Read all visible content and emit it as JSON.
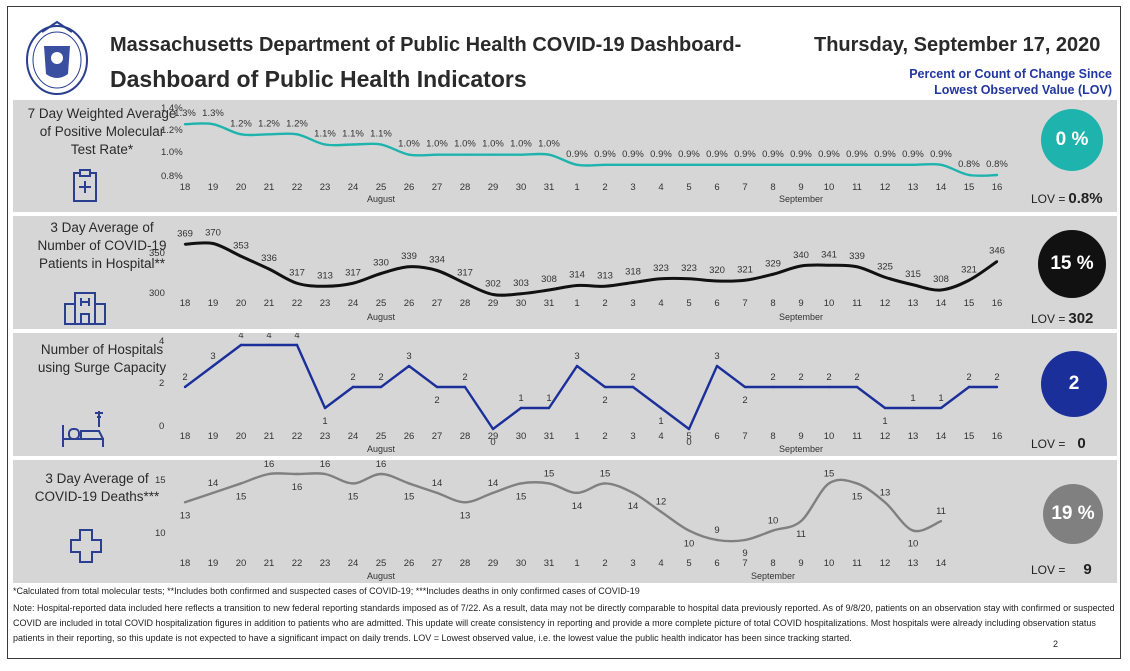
{
  "header": {
    "title": "Massachusetts Department of Public Health COVID-19 Dashboard-",
    "subtitle": "Dashboard of Public Health Indicators",
    "date": "Thursday, September 17, 2020",
    "note_line1": "Percent or Count of Change Since",
    "note_line2": "Lowest Observed Value (LOV)"
  },
  "colors": {
    "teal": "#1fb3ad",
    "black": "#111111",
    "blue": "#1b2f9b",
    "gray": "#808080",
    "panel": "#d6d6d6",
    "title": "#2237a0"
  },
  "panels": [
    {
      "label": "7 Day Weighted Average of Positive Molecular Test Rate*",
      "icon": "clipboard-icon",
      "change": "0 %",
      "lov_label": "LOV =",
      "lov_value": "0.8%"
    },
    {
      "label": "3 Day Average of Number of COVID-19 Patients in Hospital**",
      "icon": "hospital-icon",
      "change": "15 %",
      "lov_label": "LOV =",
      "lov_value": "302"
    },
    {
      "label": "Number of Hospitals using Surge Capacity",
      "icon": "hospital-bed-icon",
      "change": "2",
      "lov_label": "LOV =",
      "lov_value": "0"
    },
    {
      "label": "3 Day Average of COVID-19 Deaths***",
      "icon": "cross-icon",
      "change": "19 %",
      "lov_label": "LOV =",
      "lov_value": "9"
    }
  ],
  "chart_data": [
    {
      "type": "line",
      "x": [
        "18",
        "19",
        "20",
        "21",
        "22",
        "23",
        "24",
        "25",
        "26",
        "27",
        "28",
        "29",
        "30",
        "31",
        "1",
        "2",
        "3",
        "4",
        "5",
        "6",
        "7",
        "8",
        "9",
        "10",
        "11",
        "12",
        "13",
        "14",
        "15",
        "16"
      ],
      "month_labels": [
        "August",
        "September"
      ],
      "y_ticks": [
        "1.4%",
        "1.2%",
        "1.0%",
        "0.8%"
      ],
      "ylim": [
        0.8,
        1.4
      ],
      "series": [
        {
          "values": [
            1.3,
            1.3,
            1.2,
            1.2,
            1.2,
            1.1,
            1.1,
            1.1,
            1.0,
            1.0,
            1.0,
            1.0,
            1.0,
            1.0,
            0.9,
            0.9,
            0.9,
            0.9,
            0.9,
            0.9,
            0.9,
            0.9,
            0.9,
            0.9,
            0.9,
            0.9,
            0.9,
            0.9,
            0.8,
            0.8
          ],
          "labels": [
            "1.3%",
            "1.3%",
            "1.2%",
            "1.2%",
            "1.2%",
            "1.1%",
            "1.1%",
            "1.1%",
            "1.0%",
            "1.0%",
            "1.0%",
            "1.0%",
            "1.0%",
            "1.0%",
            "0.9%",
            "0.9%",
            "0.9%",
            "0.9%",
            "0.9%",
            "0.9%",
            "0.9%",
            "0.9%",
            "0.9%",
            "0.9%",
            "0.9%",
            "0.9%",
            "0.9%",
            "0.9%",
            "0.8%",
            "0.8%"
          ]
        }
      ],
      "color": "#1fb3ad"
    },
    {
      "type": "line",
      "x": [
        "18",
        "19",
        "20",
        "21",
        "22",
        "23",
        "24",
        "25",
        "26",
        "27",
        "28",
        "29",
        "30",
        "31",
        "1",
        "2",
        "3",
        "4",
        "5",
        "6",
        "7",
        "8",
        "9",
        "10",
        "11",
        "12",
        "13",
        "14",
        "15",
        "16"
      ],
      "month_labels": [
        "August",
        "September"
      ],
      "y_ticks": [
        "350",
        "300"
      ],
      "ylim": [
        300,
        372
      ],
      "series": [
        {
          "values": [
            369,
            370,
            353,
            336,
            317,
            313,
            317,
            330,
            339,
            334,
            317,
            302,
            303,
            308,
            314,
            313,
            318,
            323,
            323,
            320,
            321,
            329,
            340,
            341,
            339,
            325,
            315,
            308,
            321,
            346
          ],
          "labels": [
            "369",
            "370",
            "353",
            "336",
            "317",
            "313",
            "317",
            "330",
            "339",
            "334",
            "317",
            "302",
            "303",
            "308",
            "314",
            "313",
            "318",
            "323",
            "323",
            "320",
            "321",
            "329",
            "340",
            "341",
            "339",
            "325",
            "315",
            "308",
            "321",
            "346"
          ]
        }
      ],
      "color": "#111111"
    },
    {
      "type": "line",
      "x": [
        "18",
        "19",
        "20",
        "21",
        "22",
        "23",
        "24",
        "25",
        "26",
        "27",
        "28",
        "29",
        "30",
        "31",
        "1",
        "2",
        "3",
        "4",
        "5",
        "6",
        "7",
        "8",
        "9",
        "10",
        "11",
        "12",
        "13",
        "14",
        "15",
        "16"
      ],
      "month_labels": [
        "August",
        "September"
      ],
      "y_ticks": [
        "4",
        "2",
        "0"
      ],
      "ylim": [
        0,
        4
      ],
      "series": [
        {
          "values": [
            2,
            3,
            4,
            4,
            4,
            1,
            2,
            2,
            3,
            2,
            2,
            0,
            1,
            1,
            3,
            2,
            2,
            1,
            0,
            3,
            2,
            2,
            2,
            2,
            2,
            1,
            1,
            1,
            2,
            2
          ],
          "labels": [
            "2",
            "3",
            "4",
            "4",
            "4",
            "1",
            "2",
            "2",
            "3",
            "2",
            "2",
            "0",
            "1",
            "1",
            "3",
            "2",
            "2",
            "1",
            "0",
            "3",
            "2",
            "2",
            "2",
            "2",
            "2",
            "1",
            "1",
            "1",
            "2",
            "2"
          ]
        }
      ],
      "color": "#1b2f9b"
    },
    {
      "type": "line",
      "x": [
        "18",
        "19",
        "20",
        "21",
        "22",
        "23",
        "24",
        "25",
        "26",
        "27",
        "28",
        "29",
        "30",
        "31",
        "1",
        "2",
        "3",
        "4",
        "5",
        "6",
        "7",
        "8",
        "9",
        "10",
        "11",
        "12",
        "13",
        "14"
      ],
      "month_labels": [
        "August",
        "September"
      ],
      "y_ticks": [
        "15",
        "10"
      ],
      "ylim": [
        9,
        16
      ],
      "series": [
        {
          "values": [
            13,
            14,
            15,
            16,
            16,
            16,
            15,
            16,
            15,
            14,
            13,
            14,
            15,
            15,
            14,
            15,
            14,
            12,
            10,
            9,
            9,
            10,
            11,
            15,
            15,
            13,
            10,
            11
          ],
          "labels": [
            "13",
            "14",
            "15",
            "16",
            "16",
            "16",
            "15",
            "16",
            "15",
            "14",
            "13",
            "14",
            "15",
            "15",
            "14",
            "15",
            "14",
            "12",
            "10",
            "9",
            "9",
            "10",
            "11",
            "15",
            "15",
            "13",
            "10",
            "11"
          ]
        }
      ],
      "color": "#808080"
    }
  ],
  "footnotes": {
    "line1": "*Calculated from total molecular tests; **Includes both confirmed and suspected cases of COVID-19; ***Includes deaths in only confirmed cases of COVID-19",
    "note": "Note: Hospital-reported data included here reflects a transition to new federal reporting standards imposed as of 7/22. As a result, data may not be directly comparable to hospital data previously reported. As of 9/8/20, patients on an observation stay with confirmed or suspected COVID are included in total COVID hospitalization figures in addition to patients who are admitted. This update will create consistency in reporting and provide a more complete picture of total COVID hospitalizations. Most hospitals were already including observation status patients in their reporting, so this update is not expected to have a significant impact on daily trends. LOV = Lowest observed value, i.e. the lowest value the public health indicator has been since tracking started.",
    "page": "2"
  }
}
